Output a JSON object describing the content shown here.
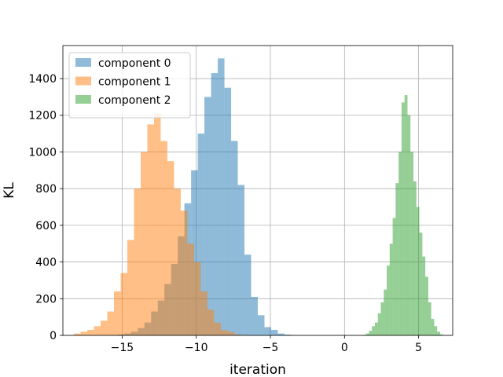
{
  "chart_data": {
    "type": "histogram",
    "xlabel": "iteration",
    "ylabel": "KL",
    "xlim": [
      -19,
      7.3
    ],
    "ylim": [
      0,
      1580
    ],
    "xticks": [
      -15,
      -10,
      -5,
      0,
      5
    ],
    "xtick_labels": [
      "−15",
      "−10",
      "−5",
      "0",
      "5"
    ],
    "yticks": [
      0,
      200,
      400,
      600,
      800,
      1000,
      1200,
      1400
    ],
    "grid": true,
    "legend_position": "top-left",
    "series": [
      {
        "name": "component 0",
        "color": "#1f77b4",
        "bin_start": -15.3,
        "bin_width": 0.45,
        "counts": [
          5,
          10,
          20,
          40,
          70,
          130,
          190,
          280,
          390,
          540,
          720,
          900,
          1100,
          1300,
          1430,
          1510,
          1350,
          1060,
          820,
          440,
          210,
          110,
          45,
          30,
          10,
          4
        ]
      },
      {
        "name": "component 1",
        "color": "#ff7f0e",
        "bin_start": -18.25,
        "bin_width": 0.45,
        "counts": [
          10,
          20,
          30,
          50,
          80,
          130,
          240,
          340,
          520,
          800,
          1000,
          1150,
          1210,
          1060,
          950,
          800,
          680,
          500,
          400,
          240,
          140,
          70,
          30,
          20,
          6,
          2
        ]
      },
      {
        "name": "component 2",
        "color": "#2ca02c",
        "bin_start": 1.25,
        "bin_width": 0.2,
        "counts": [
          3,
          10,
          25,
          50,
          70,
          120,
          180,
          250,
          380,
          500,
          640,
          830,
          1000,
          1270,
          1310,
          1200,
          1000,
          840,
          700,
          560,
          430,
          320,
          180,
          90,
          50,
          20,
          6
        ]
      }
    ]
  }
}
